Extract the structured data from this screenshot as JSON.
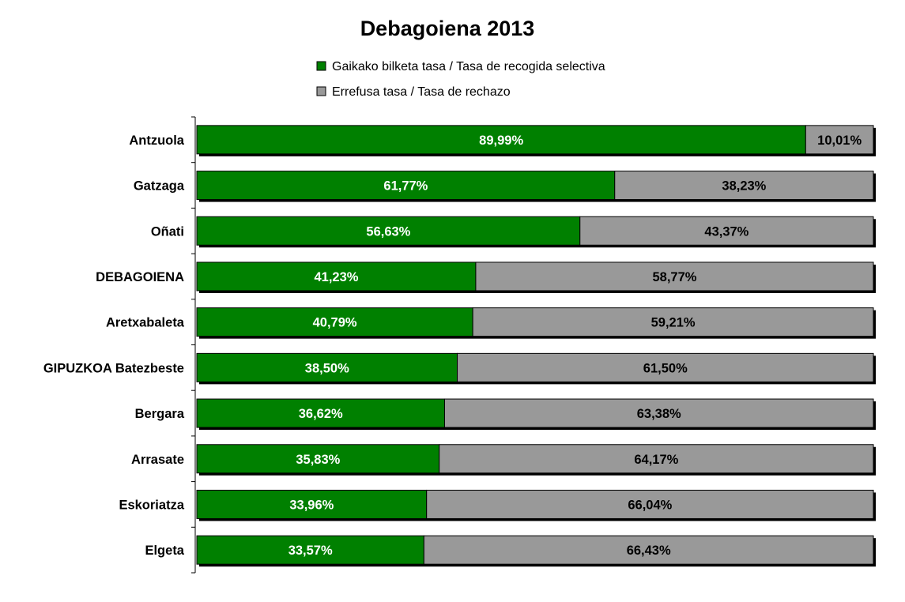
{
  "chart_data": {
    "type": "bar",
    "orientation": "horizontal",
    "stacked": true,
    "title": "Debagoiena 2013",
    "xlabel": "",
    "ylabel": "",
    "xlim": [
      0,
      100
    ],
    "grid": false,
    "legend_position": "top",
    "categories": [
      "Antzuola",
      "Gatzaga",
      "Oñati",
      "DEBAGOIENA",
      "Aretxabaleta",
      "GIPUZKOA Batezbeste",
      "Bergara",
      "Arrasate",
      "Eskoriatza",
      "Elgeta"
    ],
    "series": [
      {
        "name": "Gaikako bilketa tasa / Tasa de recogida selectiva",
        "color": "#008000",
        "label_color": "#ffffff",
        "values": [
          89.99,
          61.77,
          56.63,
          41.23,
          40.79,
          38.5,
          36.62,
          35.83,
          33.96,
          33.57
        ],
        "labels": [
          "89,99%",
          "61,77%",
          "56,63%",
          "41,23%",
          "40,79%",
          "38,50%",
          "36,62%",
          "35,83%",
          "33,96%",
          "33,57%"
        ]
      },
      {
        "name": "Errefusa tasa / Tasa de rechazo",
        "color": "#999999",
        "label_color": "#000000",
        "values": [
          10.01,
          38.23,
          43.37,
          58.77,
          59.21,
          61.5,
          63.38,
          64.17,
          66.04,
          66.43
        ],
        "labels": [
          "10,01%",
          "38,23%",
          "43,37%",
          "58,77%",
          "59,21%",
          "61,50%",
          "63,38%",
          "64,17%",
          "66,04%",
          "66,43%"
        ]
      }
    ]
  }
}
